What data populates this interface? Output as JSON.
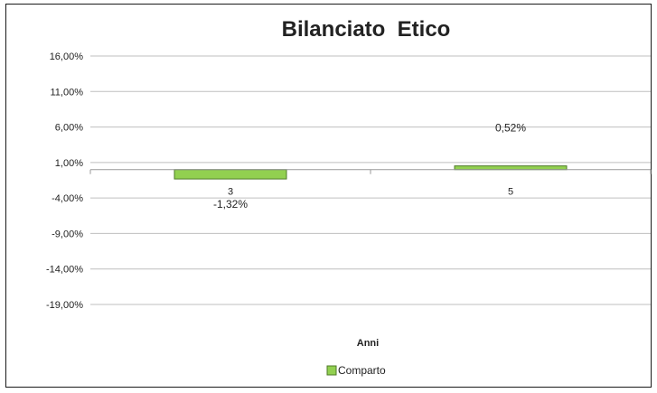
{
  "chart_data": {
    "type": "bar",
    "title": "Bilanciato  Etico",
    "xlabel": "Anni",
    "ylabel": "",
    "categories": [
      "3",
      "5"
    ],
    "series": [
      {
        "name": "Comparto",
        "values": [
          -1.32,
          0.52
        ],
        "labels": [
          "-1,32%",
          "0,52%"
        ]
      }
    ],
    "ylim": [
      -19,
      16
    ],
    "yticks": [
      16,
      11,
      6,
      1,
      -4,
      -9,
      -14,
      -19
    ],
    "ytick_labels": [
      "16,00%",
      "11,00%",
      "6,00%",
      "1,00%",
      "-4,00%",
      "-9,00%",
      "-14,00%",
      "-19,00%"
    ],
    "grid": true,
    "legend": "bottom",
    "colors": {
      "bar_fill": "#92d050",
      "bar_stroke": "#4f7a28",
      "grid": "#bfbfbf",
      "axis": "#999999"
    }
  }
}
